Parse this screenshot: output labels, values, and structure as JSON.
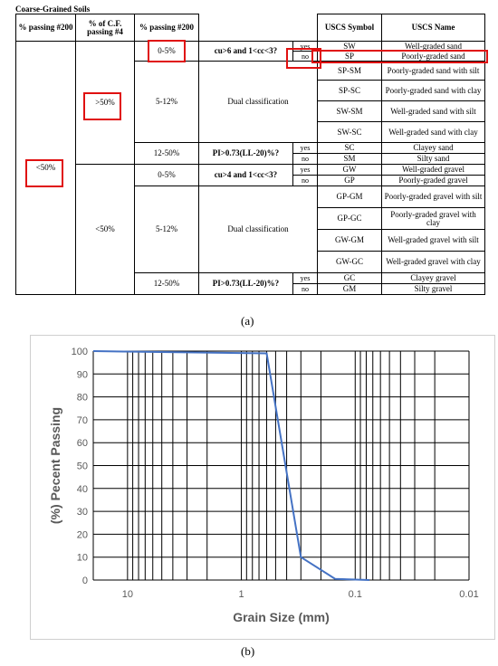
{
  "table": {
    "title": "Coarse-Grained Soils",
    "headers": {
      "col1": "% passing #200",
      "col2": "% of C.F. passing #4",
      "col3": "% passing #200",
      "col6": "USCS Symbol",
      "col7": "USCS Name"
    },
    "cells": {
      "lt50_col1": "<50%",
      "gt50_col2": ">50%",
      "lt50_col2": "<50%",
      "sand_0_5": "0-5%",
      "sand_5_12": "5-12%",
      "sand_12_50": "12-50%",
      "gravel_0_5": "0-5%",
      "gravel_5_12": "5-12%",
      "gravel_12_50": "12-50%",
      "crit_sand_cu": "cu>6 and 1<cc<3?",
      "crit_gravel_cu": "cu>4 and 1<cc<3?",
      "crit_pi": "PI>0.73(LL-20)%?",
      "dual": "Dual classification",
      "yes": "yes",
      "no": "no"
    },
    "rows": [
      {
        "symbol": "SW",
        "name": "Well-graded sand"
      },
      {
        "symbol": "SP",
        "name": "Poorly-graded sand"
      },
      {
        "symbol": "SP-SM",
        "name": "Poorly-graded sand with silt"
      },
      {
        "symbol": "SP-SC",
        "name": "Poorly-graded sand with clay"
      },
      {
        "symbol": "SW-SM",
        "name": "Well-graded sand with silt"
      },
      {
        "symbol": "SW-SC",
        "name": "Well-graded sand with clay"
      },
      {
        "symbol": "SC",
        "name": "Clayey sand"
      },
      {
        "symbol": "SM",
        "name": "Silty sand"
      },
      {
        "symbol": "GW",
        "name": "Well-graded gravel"
      },
      {
        "symbol": "GP",
        "name": "Poorly-graded gravel"
      },
      {
        "symbol": "GP-GM",
        "name": "Poorly-graded gravel with silt"
      },
      {
        "symbol": "GP-GC",
        "name": "Poorly-graded gravel with clay"
      },
      {
        "symbol": "GW-GM",
        "name": "Well-graded gravel with silt"
      },
      {
        "symbol": "GW-GC",
        "name": "Well-graded gravel with clay"
      },
      {
        "symbol": "GC",
        "name": "Clayey gravel"
      },
      {
        "symbol": "GM",
        "name": "Silty gravel"
      }
    ],
    "highlight_color": "#e01010"
  },
  "captions": {
    "a": "(a)",
    "b": "(b)"
  },
  "chart_data": {
    "type": "line",
    "title": "",
    "xlabel": "Grain Size (mm)",
    "ylabel": "(%) Pecent Passing",
    "x_scale": "log",
    "x_reversed": true,
    "xlim": [
      20,
      0.01
    ],
    "ylim": [
      0,
      100
    ],
    "yticks": [
      0,
      10,
      20,
      30,
      40,
      50,
      60,
      70,
      80,
      90,
      100
    ],
    "xticks": [
      10,
      1,
      0.1,
      0.01
    ],
    "xtick_labels": [
      "10",
      "1",
      "0.1",
      "0.01"
    ],
    "grid": true,
    "series": [
      {
        "color": "#4472c4",
        "x": [
          20,
          0.6,
          0.3,
          0.15,
          0.075
        ],
        "y": [
          100,
          99,
          10,
          0.5,
          0
        ]
      }
    ]
  }
}
